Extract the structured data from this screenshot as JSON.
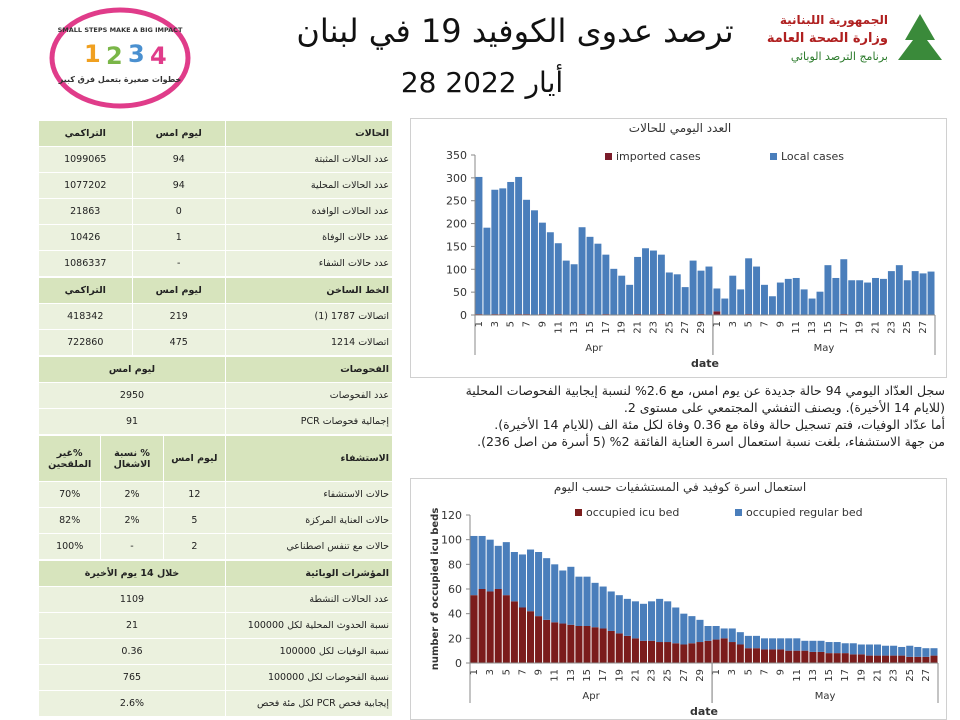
{
  "header": {
    "title": "ترصد عدوى الكوفيد 19 في لبنان",
    "date": "28 أيار 2022",
    "ministry": [
      "الجمهورية اللبنانية",
      "وزارة الصحة العامة",
      "برنامج الترصد الوبائي"
    ],
    "campaign": [
      "SMALL STEPS MAKE A BIG IMPACT",
      "خطوات صغيرة بتعمل فرق كبير"
    ]
  },
  "table": {
    "sections": [
      {
        "header": [
          "الحالات",
          "ليوم امس",
          "التراكمي"
        ],
        "rows": [
          [
            "عدد الحالات المثبتة",
            "94",
            "1099065"
          ],
          [
            "عدد الحالات المحلية",
            "94",
            "1077202"
          ],
          [
            "عدد الحالات الوافدة",
            "0",
            "21863"
          ],
          [
            "عدد حالات الوفاة",
            "1",
            "10426"
          ],
          [
            "عدد حالات الشفاء",
            "-",
            "1086337"
          ]
        ]
      },
      {
        "header": [
          "الخط الساخن",
          "ليوم امس",
          "التراكمي"
        ],
        "rows": [
          [
            "اتصالات 1787 (1)",
            "219",
            "418342"
          ],
          [
            "اتصالات 1214",
            "475",
            "722860"
          ]
        ]
      },
      {
        "header": [
          "الفحوصات",
          "ليوم امس"
        ],
        "rows": [
          [
            "عدد الفحوصات",
            "2950"
          ],
          [
            "إجمالية فحوصات PCR",
            "91"
          ]
        ]
      },
      {
        "header": [
          "الاستشفاء",
          "ليوم امس",
          "% نسبة الاشغال",
          "%غير الملقحين"
        ],
        "rows": [
          [
            "حالات الاستشفاء",
            "12",
            "2%",
            "70%"
          ],
          [
            "حالات العناية المركزة",
            "5",
            "2%",
            "82%"
          ],
          [
            "حالات مع تنفس اصطناعي",
            "2",
            "-",
            "100%"
          ]
        ]
      },
      {
        "header": [
          "المؤشرات الوبائية",
          "خلال 14 يوم الأخيرة"
        ],
        "rows": [
          [
            "عدد الحالات النشطة",
            "1109"
          ],
          [
            "نسبة الحدوث المحلية لكل 100000",
            "21"
          ],
          [
            "نسبة الوفيات لكل 100000",
            "0.36"
          ],
          [
            "نسبة الفحوصات لكل 100000",
            "765"
          ],
          [
            "إيجابية فحص PCR لكل مئة فحص",
            "2.6%"
          ]
        ]
      }
    ]
  },
  "text": [
    "سجل العدّاد اليومي 94 حالة جديدة عن يوم امس، مع 2.6% لنسبة إيجابية الفحوصات المحلية",
    "(للايام 14 الأخيرة). ويصنف التفشي المجتمعي على مستوى 2.",
    "أما عدّاد الوفيات، فتم تسجيل حالة وفاة مع 0.36 وفاة لكل مئة الف (للايام 14 الأخيرة).",
    "من جهة الاستشفاء، بلغت نسبة استعمال اسرة العناية الفائقة 2% (5 أسرة من اصل 236)."
  ],
  "chart_data": [
    {
      "type": "bar",
      "stacked": true,
      "title": "العدد اليومي للحالات",
      "x_label": "date",
      "categories": [
        "1",
        null,
        "3",
        null,
        "5",
        null,
        "7",
        null,
        "9",
        null,
        "11",
        null,
        "13",
        null,
        "15",
        null,
        "17",
        null,
        "19",
        null,
        "21",
        null,
        "23",
        null,
        "25",
        null,
        "27",
        null,
        "29",
        null,
        "1",
        null,
        "3",
        null,
        "5",
        null,
        "7",
        null,
        "9",
        null,
        "11",
        null,
        "13",
        null,
        "15",
        null,
        "17",
        null,
        "19",
        null,
        "21",
        null,
        "23",
        null,
        "25",
        null,
        "27",
        null
      ],
      "x_groups": [
        {
          "label": "Apr",
          "count": 30
        },
        {
          "label": "May",
          "count": 28
        }
      ],
      "ylim": [
        0,
        350
      ],
      "yticks": [
        0,
        50,
        100,
        150,
        200,
        250,
        300,
        350
      ],
      "grid": false,
      "legend": "top",
      "series": [
        {
          "name": "imported cases",
          "color": "#7b1c2a",
          "values": [
            2,
            1,
            2,
            2,
            1,
            2,
            2,
            1,
            2,
            1,
            2,
            1,
            1,
            2,
            1,
            1,
            2,
            1,
            1,
            1,
            2,
            1,
            1,
            2,
            1,
            1,
            1,
            1,
            2,
            1,
            8,
            1,
            1,
            1,
            2,
            1,
            1,
            1,
            1,
            1,
            1,
            1,
            1,
            1,
            1,
            1,
            2,
            1,
            1,
            1,
            1,
            1,
            1,
            1,
            1,
            1,
            1,
            0
          ]
        },
        {
          "name": "Local cases",
          "color": "#4a7ebb",
          "values": [
            300,
            190,
            272,
            275,
            290,
            300,
            250,
            228,
            200,
            180,
            155,
            118,
            110,
            190,
            170,
            155,
            130,
            100,
            85,
            65,
            125,
            145,
            140,
            130,
            92,
            88,
            60,
            118,
            95,
            105,
            50,
            35,
            85,
            55,
            122,
            105,
            65,
            40,
            70,
            78,
            80,
            55,
            35,
            50,
            108,
            80,
            120,
            75,
            75,
            70,
            80,
            78,
            95,
            108,
            75,
            95,
            90,
            95
          ]
        }
      ]
    },
    {
      "type": "bar",
      "stacked": true,
      "title": "استعمال اسرة كوفيد في المستشفيات حسب اليوم",
      "x_label": "date",
      "y_label": "number of occupied icu beds",
      "categories": [
        "1",
        null,
        "3",
        null,
        "5",
        null,
        "7",
        null,
        "9",
        null,
        "11",
        null,
        "13",
        null,
        "15",
        null,
        "17",
        null,
        "19",
        null,
        "21",
        null,
        "23",
        null,
        "25",
        null,
        "27",
        null,
        "29",
        null,
        "1",
        null,
        "3",
        null,
        "5",
        null,
        "7",
        null,
        "9",
        null,
        "11",
        null,
        "13",
        null,
        "15",
        null,
        "17",
        null,
        "19",
        null,
        "21",
        null,
        "23",
        null,
        "25",
        null,
        "27",
        null
      ],
      "x_groups": [
        {
          "label": "Apr",
          "count": 30
        },
        {
          "label": "May",
          "count": 28
        }
      ],
      "ylim": [
        0,
        120
      ],
      "yticks": [
        0,
        20,
        40,
        60,
        80,
        100,
        120
      ],
      "grid": false,
      "legend": "top",
      "series": [
        {
          "name": "occupied icu bed",
          "color": "#7b1c1c",
          "values": [
            55,
            60,
            58,
            60,
            55,
            50,
            45,
            42,
            38,
            35,
            33,
            32,
            31,
            30,
            30,
            29,
            28,
            26,
            24,
            22,
            20,
            18,
            18,
            17,
            17,
            16,
            15,
            16,
            17,
            18,
            19,
            20,
            17,
            15,
            12,
            12,
            11,
            11,
            11,
            10,
            10,
            10,
            9,
            9,
            8,
            8,
            8,
            7,
            7,
            6,
            6,
            6,
            6,
            6,
            5,
            5,
            5,
            6
          ]
        },
        {
          "name": "occupied regular bed",
          "color": "#4a7ebb",
          "values": [
            48,
            43,
            42,
            35,
            43,
            40,
            43,
            50,
            52,
            50,
            47,
            43,
            47,
            40,
            40,
            36,
            34,
            32,
            31,
            30,
            30,
            30,
            32,
            35,
            33,
            29,
            25,
            22,
            18,
            12,
            11,
            8,
            11,
            10,
            10,
            10,
            9,
            9,
            9,
            10,
            10,
            8,
            9,
            9,
            9,
            9,
            8,
            9,
            8,
            9,
            9,
            8,
            8,
            7,
            9,
            8,
            7,
            6
          ]
        }
      ]
    }
  ]
}
